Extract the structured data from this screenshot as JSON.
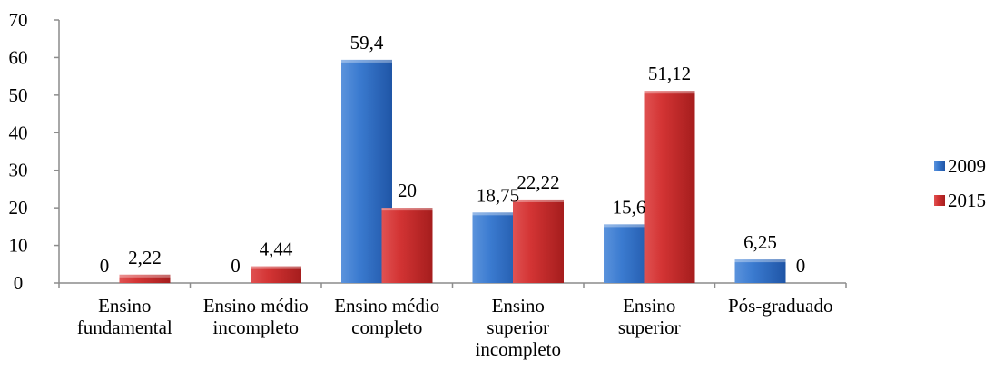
{
  "chart_data": {
    "type": "bar",
    "title": "",
    "xlabel": "",
    "ylabel": "",
    "ylim": [
      0,
      70
    ],
    "yticks": [
      0,
      10,
      20,
      30,
      40,
      50,
      60,
      70
    ],
    "grid": false,
    "legend_position": "right",
    "categories": [
      [
        "Ensino",
        "fundamental"
      ],
      [
        "Ensino médio",
        "incompleto"
      ],
      [
        "Ensino médio",
        "completo"
      ],
      [
        "Ensino",
        "superior",
        "incompleto"
      ],
      [
        "Ensino",
        "superior"
      ],
      [
        "Pós-graduado"
      ]
    ],
    "series": [
      {
        "name": "2009",
        "color": "#2e6fc7",
        "values": [
          0,
          0,
          59.4,
          18.75,
          15.6,
          6.25
        ],
        "labels": [
          "0",
          "0",
          "59,4",
          "18,75",
          "15,6",
          "6,25"
        ]
      },
      {
        "name": "2015",
        "color": "#d02a2a",
        "values": [
          2.22,
          4.44,
          20,
          22.22,
          51.12,
          0
        ],
        "labels": [
          "2,22",
          "4,44",
          "20",
          "22,22",
          "51,12",
          "0"
        ]
      }
    ]
  }
}
